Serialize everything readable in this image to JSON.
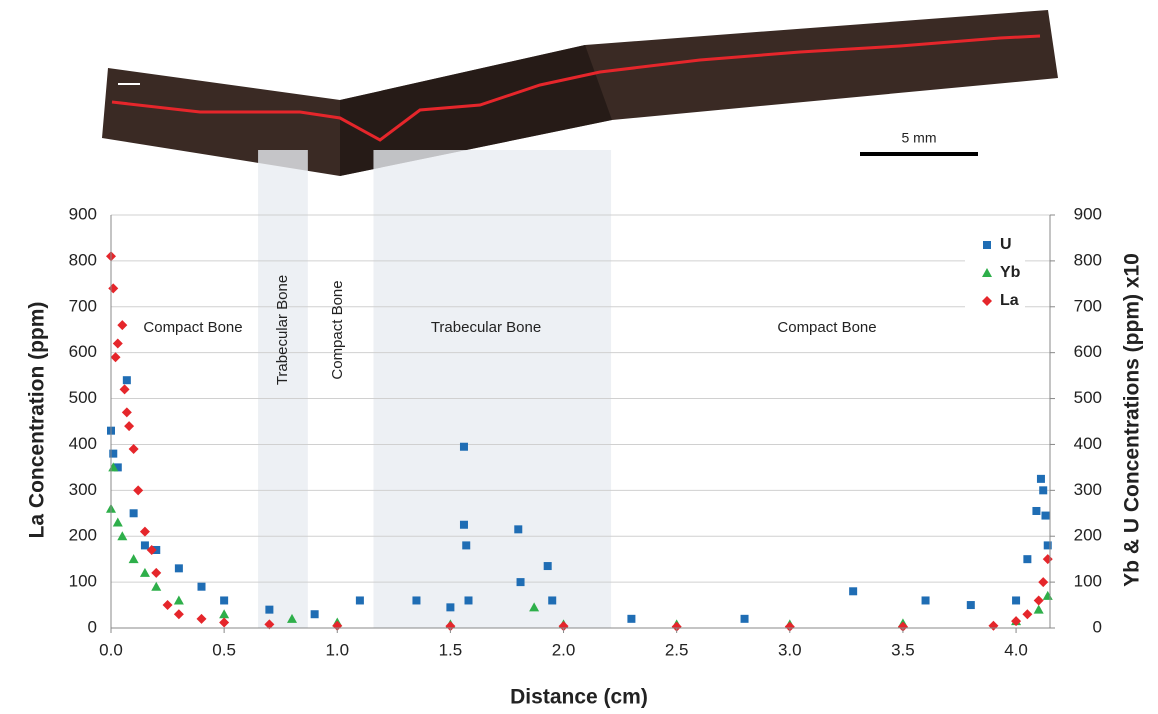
{
  "image": {
    "scale_label": "5 mm"
  },
  "chart_data": {
    "type": "scatter",
    "xlabel": "Distance (cm)",
    "ylabel": "La Concentration (ppm)",
    "y2label": "Yb & U Concentrations (ppm) x10",
    "xlim": [
      0,
      4.15
    ],
    "ylim": [
      0,
      900
    ],
    "y2lim": [
      0,
      900
    ],
    "xticks": [
      {
        "value": 0,
        "label": "0.0"
      },
      0.5,
      {
        "value": 1,
        "label": "1.0"
      },
      1.5,
      {
        "value": 2,
        "label": "2.0"
      },
      2.5,
      {
        "value": 3,
        "label": "3.0"
      },
      3.5,
      {
        "value": 4,
        "label": "4.0"
      }
    ],
    "yticks": [
      0,
      100,
      200,
      300,
      400,
      500,
      600,
      700,
      800,
      900
    ],
    "y2ticks": [
      0,
      100,
      200,
      300,
      400,
      500,
      600,
      700,
      800,
      900
    ],
    "grid": true,
    "legend": "top-right",
    "bands": [
      [
        0.65,
        0.87
      ],
      [
        1.16,
        2.21
      ]
    ],
    "annotations": [
      "Compact Bone",
      "Trabecular Bone",
      "Compact Bone",
      "Trabecular Bone",
      "Compact Bone"
    ],
    "series": [
      {
        "name": "U",
        "color": "#1f6db4",
        "marker": "square",
        "axis": "y2",
        "x": [
          0.0,
          0.01,
          0.03,
          0.07,
          0.1,
          0.15,
          0.2,
          0.3,
          0.4,
          0.5,
          0.7,
          0.9,
          1.1,
          1.35,
          1.5,
          1.56,
          1.56,
          1.57,
          1.58,
          1.8,
          1.81,
          1.93,
          1.95,
          2.3,
          2.8,
          3.28,
          3.6,
          3.8,
          4.0,
          4.05,
          4.09,
          4.11,
          4.12,
          4.13,
          4.14
        ],
        "values": [
          430,
          380,
          350,
          540,
          250,
          180,
          170,
          130,
          90,
          60,
          40,
          30,
          60,
          60,
          45,
          395,
          225,
          180,
          60,
          215,
          100,
          135,
          60,
          20,
          20,
          80,
          60,
          50,
          60,
          150,
          255,
          325,
          300,
          245,
          180
        ]
      },
      {
        "name": "Yb",
        "color": "#2eaf4a",
        "marker": "triangle",
        "axis": "y2",
        "x": [
          0.0,
          0.01,
          0.03,
          0.05,
          0.1,
          0.15,
          0.2,
          0.3,
          0.5,
          0.8,
          1.0,
          1.5,
          1.87,
          2.0,
          2.5,
          3.0,
          3.5,
          4.0,
          4.1,
          4.14
        ],
        "values": [
          260,
          350,
          230,
          200,
          150,
          120,
          90,
          60,
          30,
          20,
          12,
          8,
          45,
          8,
          8,
          8,
          10,
          15,
          40,
          70
        ]
      },
      {
        "name": "La",
        "color": "#e5262b",
        "marker": "diamond",
        "x": [
          0.0,
          0.01,
          0.02,
          0.03,
          0.05,
          0.06,
          0.07,
          0.08,
          0.1,
          0.12,
          0.15,
          0.18,
          0.2,
          0.25,
          0.3,
          0.4,
          0.5,
          0.7,
          1.0,
          1.5,
          2.0,
          2.5,
          3.0,
          3.5,
          3.9,
          4.0,
          4.05,
          4.1,
          4.12,
          4.14
        ],
        "values": [
          810,
          740,
          590,
          620,
          660,
          520,
          470,
          440,
          390,
          300,
          210,
          170,
          120,
          50,
          30,
          20,
          12,
          8,
          5,
          4,
          4,
          3,
          3,
          3,
          5,
          15,
          30,
          60,
          100,
          150
        ]
      }
    ]
  }
}
